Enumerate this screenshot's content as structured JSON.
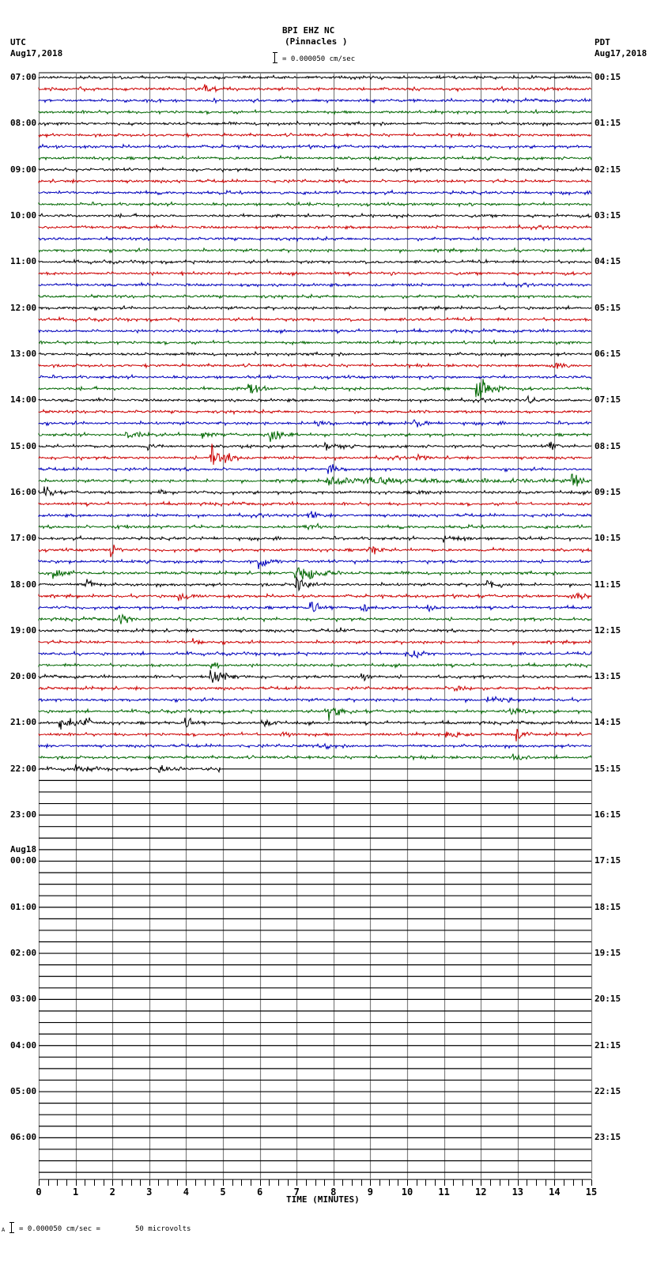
{
  "header": {
    "station": "BPI EHZ NC",
    "location": "(Pinnacles )",
    "scale_text": "= 0.000050 cm/sec",
    "left_tz": "UTC",
    "left_date": "Aug17,2018",
    "right_tz": "PDT",
    "right_date": "Aug17,2018"
  },
  "footer": {
    "scale_prefix": "A",
    "scale_text": "= 0.000050 cm/sec =",
    "microvolts": "50 microvolts"
  },
  "chart_data": {
    "type": "line",
    "title": "BPI EHZ NC (Pinnacles ) helicorder",
    "xlabel": "TIME (MINUTES)",
    "ylabel_left": "UTC",
    "ylabel_right": "PDT",
    "xlim": [
      0,
      15
    ],
    "x_ticks": [
      "0",
      "1",
      "2",
      "3",
      "4",
      "5",
      "6",
      "7",
      "8",
      "9",
      "10",
      "11",
      "12",
      "13",
      "14",
      "15"
    ],
    "minor_ticks_per_minute": 4,
    "grid": true,
    "rows_total": 96,
    "minutes_per_row": 15,
    "data_rows": 61,
    "last_row_fraction": 0.33,
    "trace_colors": [
      "#000000",
      "#cc0000",
      "#0000bb",
      "#006600"
    ],
    "left_labels": [
      {
        "row": 0,
        "text": "07:00"
      },
      {
        "row": 4,
        "text": "08:00"
      },
      {
        "row": 8,
        "text": "09:00"
      },
      {
        "row": 12,
        "text": "10:00"
      },
      {
        "row": 16,
        "text": "11:00"
      },
      {
        "row": 20,
        "text": "12:00"
      },
      {
        "row": 24,
        "text": "13:00"
      },
      {
        "row": 28,
        "text": "14:00"
      },
      {
        "row": 32,
        "text": "15:00"
      },
      {
        "row": 36,
        "text": "16:00"
      },
      {
        "row": 40,
        "text": "17:00"
      },
      {
        "row": 44,
        "text": "18:00"
      },
      {
        "row": 48,
        "text": "19:00"
      },
      {
        "row": 52,
        "text": "20:00"
      },
      {
        "row": 56,
        "text": "21:00"
      },
      {
        "row": 60,
        "text": "22:00"
      },
      {
        "row": 64,
        "text": "23:00"
      },
      {
        "row": 68,
        "text": "00:00",
        "date": "Aug18"
      },
      {
        "row": 72,
        "text": "01:00"
      },
      {
        "row": 76,
        "text": "02:00"
      },
      {
        "row": 80,
        "text": "03:00"
      },
      {
        "row": 84,
        "text": "04:00"
      },
      {
        "row": 88,
        "text": "05:00"
      },
      {
        "row": 92,
        "text": "06:00"
      }
    ],
    "right_labels": [
      {
        "row": 0,
        "text": "00:15"
      },
      {
        "row": 4,
        "text": "01:15"
      },
      {
        "row": 8,
        "text": "02:15"
      },
      {
        "row": 12,
        "text": "03:15"
      },
      {
        "row": 16,
        "text": "04:15"
      },
      {
        "row": 20,
        "text": "05:15"
      },
      {
        "row": 24,
        "text": "06:15"
      },
      {
        "row": 28,
        "text": "07:15"
      },
      {
        "row": 32,
        "text": "08:15"
      },
      {
        "row": 36,
        "text": "09:15"
      },
      {
        "row": 40,
        "text": "10:15"
      },
      {
        "row": 44,
        "text": "11:15"
      },
      {
        "row": 48,
        "text": "12:15"
      },
      {
        "row": 52,
        "text": "13:15"
      },
      {
        "row": 56,
        "text": "14:15"
      },
      {
        "row": 60,
        "text": "15:15"
      },
      {
        "row": 64,
        "text": "16:15"
      },
      {
        "row": 68,
        "text": "17:15"
      },
      {
        "row": 72,
        "text": "18:15"
      },
      {
        "row": 76,
        "text": "19:15"
      },
      {
        "row": 80,
        "text": "20:15"
      },
      {
        "row": 84,
        "text": "21:15"
      },
      {
        "row": 88,
        "text": "22:15"
      },
      {
        "row": 92,
        "text": "23:15"
      }
    ],
    "events": [
      {
        "row": 1,
        "min": 4.5,
        "dur": 0.4,
        "amp": 5
      },
      {
        "row": 17,
        "min": 3.9,
        "dur": 0.2,
        "amp": 2
      },
      {
        "row": 17,
        "min": 9.6,
        "dur": 0.2,
        "amp": 2
      },
      {
        "row": 25,
        "min": 14.0,
        "dur": 0.5,
        "amp": 6
      },
      {
        "row": 27,
        "min": 5.7,
        "dur": 0.6,
        "amp": 9
      },
      {
        "row": 27,
        "min": 11.9,
        "dur": 0.8,
        "amp": 14
      },
      {
        "row": 28,
        "min": 13.3,
        "dur": 0.4,
        "amp": 6
      },
      {
        "row": 30,
        "min": 7.5,
        "dur": 0.6,
        "amp": 4
      },
      {
        "row": 30,
        "min": 10.2,
        "dur": 0.5,
        "amp": 6
      },
      {
        "row": 31,
        "min": 2.4,
        "dur": 0.8,
        "amp": 4
      },
      {
        "row": 31,
        "min": 4.4,
        "dur": 0.6,
        "amp": 5
      },
      {
        "row": 31,
        "min": 6.3,
        "dur": 0.8,
        "amp": 8
      },
      {
        "row": 32,
        "min": 3.0,
        "dur": 0.2,
        "amp": 5
      },
      {
        "row": 32,
        "min": 7.8,
        "dur": 0.6,
        "amp": 5
      },
      {
        "row": 32,
        "min": 13.9,
        "dur": 0.4,
        "amp": 5
      },
      {
        "row": 33,
        "min": 4.7,
        "dur": 0.8,
        "amp": 14
      },
      {
        "row": 33,
        "min": 10.3,
        "dur": 0.5,
        "amp": 3
      },
      {
        "row": 34,
        "min": 7.9,
        "dur": 0.6,
        "amp": 6
      },
      {
        "row": 35,
        "min": 7.8,
        "dur": 7.0,
        "amp": 5
      },
      {
        "row": 35,
        "min": 14.5,
        "dur": 0.5,
        "amp": 10
      },
      {
        "row": 36,
        "min": 0.2,
        "dur": 0.3,
        "amp": 8
      },
      {
        "row": 36,
        "min": 3.3,
        "dur": 0.2,
        "amp": 4
      },
      {
        "row": 36,
        "min": 10.3,
        "dur": 0.5,
        "amp": 4
      },
      {
        "row": 37,
        "min": 14.6,
        "dur": 0.4,
        "amp": 3
      },
      {
        "row": 38,
        "min": 7.3,
        "dur": 0.5,
        "amp": 5
      },
      {
        "row": 39,
        "min": 2.1,
        "dur": 0.6,
        "amp": 3
      },
      {
        "row": 39,
        "min": 7.2,
        "dur": 0.6,
        "amp": 5
      },
      {
        "row": 40,
        "min": 11.0,
        "dur": 0.8,
        "amp": 4
      },
      {
        "row": 41,
        "min": 2.0,
        "dur": 0.3,
        "amp": 7
      },
      {
        "row": 41,
        "min": 9.0,
        "dur": 0.4,
        "amp": 7
      },
      {
        "row": 42,
        "min": 6.0,
        "dur": 0.6,
        "amp": 8
      },
      {
        "row": 43,
        "min": 0.4,
        "dur": 0.6,
        "amp": 7
      },
      {
        "row": 43,
        "min": 7.0,
        "dur": 1.2,
        "amp": 10
      },
      {
        "row": 44,
        "min": 1.3,
        "dur": 0.4,
        "amp": 5
      },
      {
        "row": 44,
        "min": 7.0,
        "dur": 0.5,
        "amp": 10
      },
      {
        "row": 44,
        "min": 12.2,
        "dur": 0.6,
        "amp": 6
      },
      {
        "row": 45,
        "min": 3.8,
        "dur": 0.6,
        "amp": 6
      },
      {
        "row": 45,
        "min": 14.5,
        "dur": 0.4,
        "amp": 5
      },
      {
        "row": 46,
        "min": 7.4,
        "dur": 0.6,
        "amp": 9
      },
      {
        "row": 46,
        "min": 8.8,
        "dur": 0.3,
        "amp": 6
      },
      {
        "row": 46,
        "min": 10.6,
        "dur": 0.4,
        "amp": 5
      },
      {
        "row": 47,
        "min": 2.2,
        "dur": 0.5,
        "amp": 9
      },
      {
        "row": 48,
        "min": 8.2,
        "dur": 0.4,
        "amp": 4
      },
      {
        "row": 49,
        "min": 4.2,
        "dur": 0.3,
        "amp": 4
      },
      {
        "row": 50,
        "min": 10.0,
        "dur": 0.6,
        "amp": 7
      },
      {
        "row": 51,
        "min": 4.7,
        "dur": 0.4,
        "amp": 5
      },
      {
        "row": 52,
        "min": 4.7,
        "dur": 1.0,
        "amp": 8
      },
      {
        "row": 52,
        "min": 8.8,
        "dur": 0.4,
        "amp": 5
      },
      {
        "row": 53,
        "min": 11.3,
        "dur": 0.5,
        "amp": 6
      },
      {
        "row": 54,
        "min": 12.2,
        "dur": 0.6,
        "amp": 4
      },
      {
        "row": 55,
        "min": 7.9,
        "dur": 0.6,
        "amp": 10
      },
      {
        "row": 55,
        "min": 12.8,
        "dur": 0.6,
        "amp": 6
      },
      {
        "row": 56,
        "min": 0.6,
        "dur": 0.8,
        "amp": 8
      },
      {
        "row": 56,
        "min": 1.3,
        "dur": 0.2,
        "amp": 10
      },
      {
        "row": 56,
        "min": 4.0,
        "dur": 0.6,
        "amp": 8
      },
      {
        "row": 56,
        "min": 6.1,
        "dur": 0.5,
        "amp": 6
      },
      {
        "row": 57,
        "min": 6.6,
        "dur": 0.4,
        "amp": 4
      },
      {
        "row": 57,
        "min": 11.1,
        "dur": 0.8,
        "amp": 6
      },
      {
        "row": 57,
        "min": 13.0,
        "dur": 0.4,
        "amp": 7
      },
      {
        "row": 58,
        "min": 7.8,
        "dur": 0.2,
        "amp": 7
      },
      {
        "row": 59,
        "min": 12.9,
        "dur": 0.5,
        "amp": 5
      },
      {
        "row": 60,
        "min": 1.0,
        "dur": 0.6,
        "amp": 5
      },
      {
        "row": 60,
        "min": 3.3,
        "dur": 0.6,
        "amp": 4
      },
      {
        "row": 60,
        "min": 4.9,
        "dur": 0.1,
        "amp": 5
      }
    ]
  }
}
